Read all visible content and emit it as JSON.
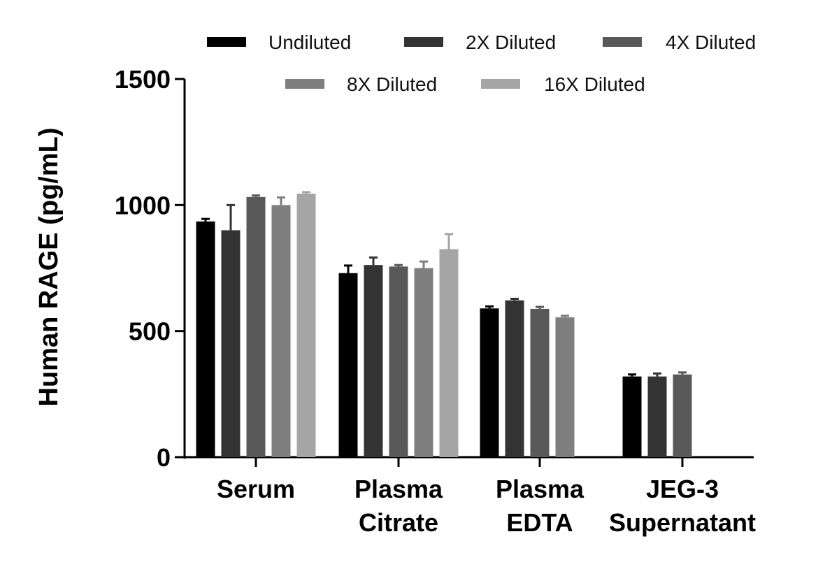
{
  "chart_data": {
    "type": "bar",
    "title": "",
    "xlabel": "",
    "ylabel": "Human RAGE (pg/mL)",
    "ylim": [
      0,
      1500
    ],
    "yticks": [
      0,
      500,
      1000,
      1500
    ],
    "grid": false,
    "legend_position": "top",
    "categories": [
      [
        "Serum"
      ],
      [
        "Plasma",
        "Citrate"
      ],
      [
        "Plasma",
        "EDTA"
      ],
      [
        "JEG-3",
        "Supernatant"
      ]
    ],
    "series": [
      {
        "name": "Undiluted",
        "color": "#000000",
        "values": [
          935,
          730,
          590,
          320
        ],
        "errors": [
          10,
          30,
          8,
          8
        ]
      },
      {
        "name": "2X Diluted",
        "color": "#333333",
        "values": [
          900,
          762,
          622,
          320
        ],
        "errors": [
          100,
          30,
          6,
          12
        ]
      },
      {
        "name": "4X Diluted",
        "color": "#595959",
        "values": [
          1032,
          756,
          588,
          328
        ],
        "errors": [
          6,
          6,
          8,
          8
        ]
      },
      {
        "name": "8X Diluted",
        "color": "#7f7f7f",
        "values": [
          1000,
          750,
          555,
          null
        ],
        "errors": [
          30,
          26,
          6,
          null
        ]
      },
      {
        "name": "16X Diluted",
        "color": "#a5a5a5",
        "values": [
          1045,
          825,
          null,
          null
        ],
        "errors": [
          6,
          60,
          null,
          null
        ]
      }
    ]
  }
}
